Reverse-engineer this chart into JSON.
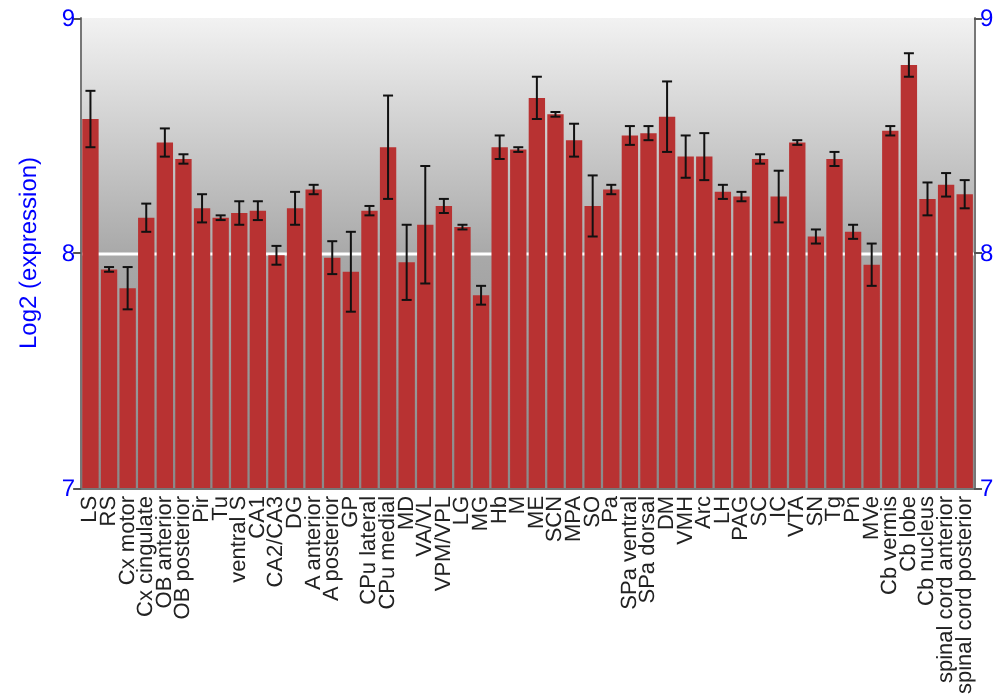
{
  "chart_data": {
    "type": "bar",
    "ylabel": "Log2 (expression)",
    "categories": [
      "LS",
      "RS",
      "Cx motor",
      "Cx cingulate",
      "OB anterior",
      "OB posterior",
      "Pir",
      "Tu",
      "ventral S",
      "CA1",
      "CA2/CA3",
      "DG",
      "A anterior",
      "A posterior",
      "GP",
      "CPu lateral",
      "CPu medial",
      "MD",
      "VA/VL",
      "VPM/VPL",
      "LG",
      "MG",
      "Hb",
      "M",
      "ME",
      "SCN",
      "MPA",
      "SO",
      "Pa",
      "SPa ventral",
      "SPa dorsal",
      "DM",
      "VMH",
      "Arc",
      "LH",
      "PAG",
      "SC",
      "IC",
      "VTA",
      "SN",
      "Tg",
      "Pn",
      "MVe",
      "Cb vermis",
      "Cb lobe",
      "Cb nucleus",
      "spinal cord anterior",
      "spinal cord posterior"
    ],
    "values": [
      8.57,
      7.93,
      7.85,
      8.15,
      8.47,
      8.4,
      8.19,
      8.15,
      8.17,
      8.18,
      7.99,
      8.19,
      8.27,
      7.98,
      7.92,
      8.18,
      8.45,
      7.96,
      8.12,
      8.2,
      8.11,
      7.82,
      8.45,
      8.44,
      8.66,
      8.59,
      8.48,
      8.2,
      8.27,
      8.5,
      8.51,
      8.58,
      8.41,
      8.41,
      8.26,
      8.24,
      8.4,
      8.24,
      8.47,
      8.07,
      8.4,
      8.09,
      7.95,
      8.52,
      8.8,
      8.23,
      8.29,
      8.25
    ],
    "errors": [
      0.12,
      0.01,
      0.09,
      0.06,
      0.06,
      0.02,
      0.06,
      0.01,
      0.05,
      0.04,
      0.04,
      0.07,
      0.02,
      0.07,
      0.17,
      0.02,
      0.22,
      0.16,
      0.25,
      0.03,
      0.01,
      0.04,
      0.05,
      0.01,
      0.09,
      0.01,
      0.07,
      0.13,
      0.02,
      0.04,
      0.03,
      0.15,
      0.09,
      0.1,
      0.03,
      0.02,
      0.02,
      0.11,
      0.01,
      0.03,
      0.03,
      0.03,
      0.09,
      0.02,
      0.05,
      0.07,
      0.05,
      0.06
    ],
    "color": "#b83232",
    "ylim": [
      7,
      9
    ],
    "yticks": [
      7,
      8,
      9
    ],
    "y2lim": [
      7,
      9
    ],
    "y2ticks": [
      7,
      8,
      9
    ],
    "grid": "y"
  }
}
